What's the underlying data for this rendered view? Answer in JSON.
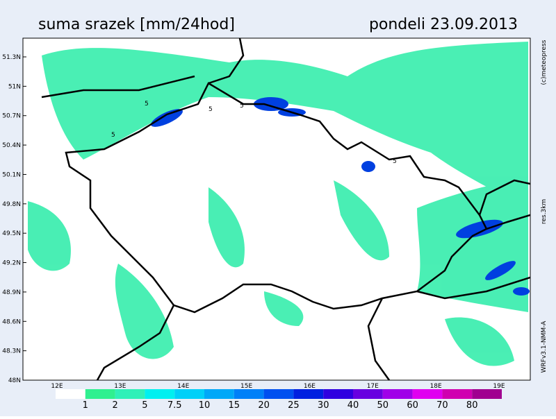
{
  "header": {
    "title": "suma srazek [mm/24hod]",
    "date": "pondeli 23.09.2013"
  },
  "map": {
    "lat_labels": [
      "51.3N",
      "51N",
      "50.7N",
      "50.4N",
      "50.1N",
      "49.8N",
      "49.5N",
      "49.2N",
      "48.9N",
      "48.6N",
      "48.3N",
      "48N"
    ],
    "lon_labels": [
      "12E",
      "13E",
      "14E",
      "15E",
      "16E",
      "17E",
      "18E",
      "19E"
    ],
    "contour_labels": [
      "5",
      "5",
      "5",
      "5",
      "5"
    ]
  },
  "side_labels": [
    "(c)meteopress",
    "res.3km",
    "WRFv3.1-NMM-A"
  ],
  "legend": {
    "labels": [
      1,
      2,
      5,
      7.5,
      10,
      15,
      20,
      25,
      30,
      40,
      50,
      60,
      70,
      80
    ],
    "colors": [
      "#ffffff",
      "#30f090",
      "#30f0b8",
      "#00f0f0",
      "#00d0f8",
      "#00a8f8",
      "#0080f8",
      "#0050f0",
      "#0020e0",
      "#3000e0",
      "#6800e0",
      "#a000e8",
      "#e000f0",
      "#d000b0",
      "#a00090"
    ]
  }
}
